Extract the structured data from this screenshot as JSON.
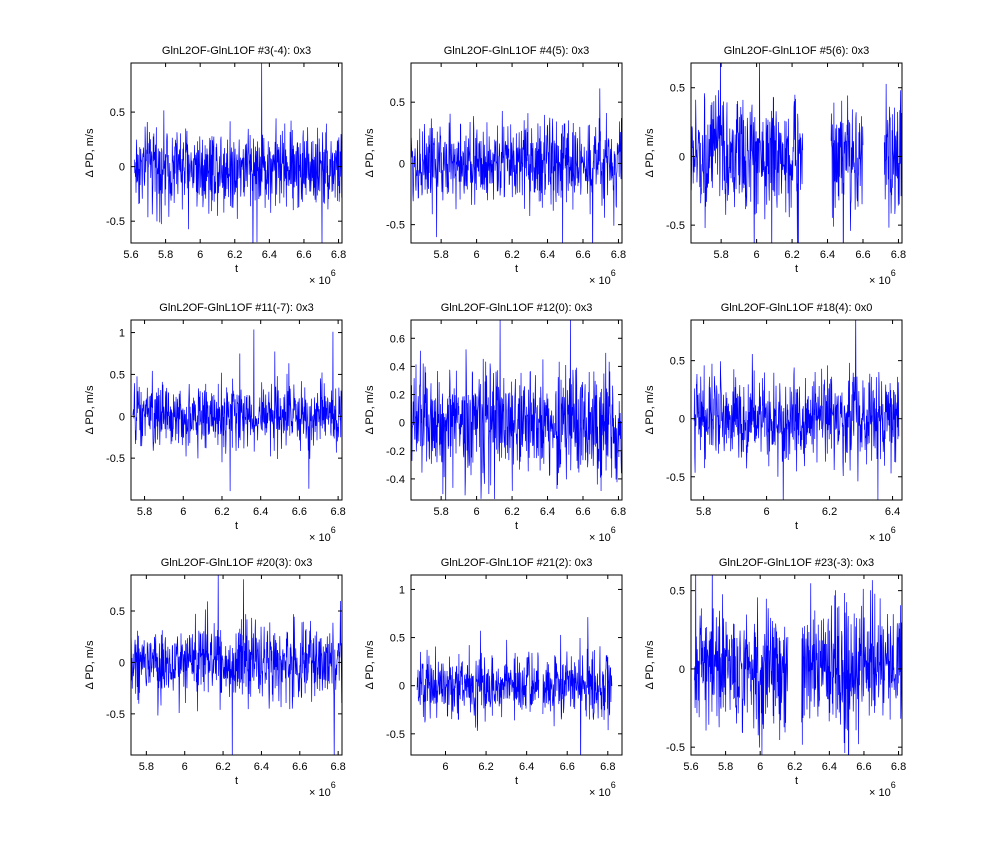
{
  "figure": {
    "background": "#ffffff",
    "series_color": "#0000ff"
  },
  "chart_data": [
    {
      "type": "line",
      "title": "GlnL2OF-GlnL1OF #3(-4): 0x3",
      "xlabel": "t",
      "ylabel": "Δ PD, m/s",
      "x_multiplier": "× 10^6",
      "xlim": [
        5.6,
        6.82
      ],
      "ylim": [
        -0.7,
        0.95
      ],
      "xticks": [
        5.6,
        5.8,
        6.0,
        6.2,
        6.4,
        6.6,
        6.8
      ],
      "xtick_labels": [
        "5.6",
        "5.8",
        "6",
        "6.2",
        "6.4",
        "6.6",
        "6.8"
      ],
      "yticks": [
        -0.5,
        0,
        0.5
      ],
      "ytick_labels": [
        "-0.5",
        "0",
        "0.5"
      ],
      "segments": [
        [
          5.62,
          6.82
        ]
      ],
      "noise_amplitude": 0.28,
      "series": [
        {
          "color": "#0000ff"
        }
      ]
    },
    {
      "type": "line",
      "title": "GlnL2OF-GlnL1OF #4(5): 0x3",
      "xlabel": "t",
      "ylabel": "Δ PD, m/s",
      "x_multiplier": "× 10^6",
      "xlim": [
        5.63,
        6.82
      ],
      "ylim": [
        -0.65,
        0.82
      ],
      "xticks": [
        5.8,
        6.0,
        6.2,
        6.4,
        6.6,
        6.8
      ],
      "xtick_labels": [
        "5.8",
        "6",
        "6.2",
        "6.4",
        "6.6",
        "6.8"
      ],
      "yticks": [
        -0.5,
        0,
        0.5
      ],
      "ytick_labels": [
        "-0.5",
        "0",
        "0.5"
      ],
      "segments": [
        [
          5.63,
          6.82
        ]
      ],
      "noise_amplitude": 0.25,
      "series": [
        {
          "color": "#0000ff"
        }
      ]
    },
    {
      "type": "line",
      "title": "GlnL2OF-GlnL1OF #5(6): 0x3",
      "xlabel": "t",
      "ylabel": "Δ PD, m/s",
      "x_multiplier": "× 10^6",
      "xlim": [
        5.63,
        6.82
      ],
      "ylim": [
        -0.63,
        0.68
      ],
      "xticks": [
        5.8,
        6.0,
        6.2,
        6.4,
        6.6,
        6.8
      ],
      "xtick_labels": [
        "5.8",
        "6",
        "6.2",
        "6.4",
        "6.6",
        "6.8"
      ],
      "yticks": [
        -0.5,
        0,
        0.5
      ],
      "ytick_labels": [
        "-0.5",
        "0",
        "0.5"
      ],
      "segments": [
        [
          5.63,
          6.26
        ],
        [
          6.42,
          6.6
        ],
        [
          6.72,
          6.82
        ]
      ],
      "noise_amplitude": 0.3,
      "series": [
        {
          "color": "#0000ff"
        }
      ]
    },
    {
      "type": "line",
      "title": "GlnL2OF-GlnL1OF #11(-7): 0x3",
      "xlabel": "t",
      "ylabel": "Δ PD, m/s",
      "x_multiplier": "× 10^6",
      "xlim": [
        5.73,
        6.82
      ],
      "ylim": [
        -1.0,
        1.15
      ],
      "xticks": [
        5.8,
        6.0,
        6.2,
        6.4,
        6.6,
        6.8
      ],
      "xtick_labels": [
        "5.8",
        "6",
        "6.2",
        "6.4",
        "6.6",
        "6.8"
      ],
      "yticks": [
        -0.5,
        0,
        0.5,
        1
      ],
      "ytick_labels": [
        "-0.5",
        "0",
        "0.5",
        "1"
      ],
      "segments": [
        [
          5.74,
          6.82
        ]
      ],
      "noise_amplitude": 0.28,
      "series": [
        {
          "color": "#0000ff"
        }
      ]
    },
    {
      "type": "line",
      "title": "GlnL2OF-GlnL1OF #12(0): 0x3",
      "xlabel": "t",
      "ylabel": "Δ PD, m/s",
      "x_multiplier": "× 10^6",
      "xlim": [
        5.63,
        6.82
      ],
      "ylim": [
        -0.55,
        0.73
      ],
      "xticks": [
        5.8,
        6.0,
        6.2,
        6.4,
        6.6,
        6.8
      ],
      "xtick_labels": [
        "5.8",
        "6",
        "6.2",
        "6.4",
        "6.6",
        "6.8"
      ],
      "yticks": [
        -0.4,
        -0.2,
        0,
        0.2,
        0.4,
        0.6
      ],
      "ytick_labels": [
        "-0.4",
        "-0.2",
        "0",
        "0.2",
        "0.4",
        "0.6"
      ],
      "segments": [
        [
          5.63,
          6.82
        ]
      ],
      "noise_amplitude": 0.3,
      "series": [
        {
          "color": "#0000ff"
        }
      ]
    },
    {
      "type": "line",
      "title": "GlnL2OF-GlnL1OF #18(4): 0x0",
      "xlabel": "t",
      "ylabel": "Δ PD, m/s",
      "x_multiplier": "× 10^6",
      "xlim": [
        5.76,
        6.43
      ],
      "ylim": [
        -0.7,
        0.85
      ],
      "xticks": [
        5.8,
        6.0,
        6.2,
        6.4
      ],
      "xtick_labels": [
        "5.8",
        "6",
        "6.2",
        "6.4"
      ],
      "yticks": [
        -0.5,
        0,
        0.5
      ],
      "ytick_labels": [
        "-0.5",
        "0",
        "0.5"
      ],
      "segments": [
        [
          5.77,
          6.42
        ]
      ],
      "noise_amplitude": 0.27,
      "series": [
        {
          "color": "#0000ff"
        }
      ]
    },
    {
      "type": "line",
      "title": "GlnL2OF-GlnL1OF #20(3): 0x3",
      "xlabel": "t",
      "ylabel": "Δ PD, m/s",
      "x_multiplier": "× 10^6",
      "xlim": [
        5.72,
        6.82
      ],
      "ylim": [
        -0.9,
        0.85
      ],
      "xticks": [
        5.8,
        6.0,
        6.2,
        6.4,
        6.6,
        6.8
      ],
      "xtick_labels": [
        "5.8",
        "6",
        "6.2",
        "6.4",
        "6.6",
        "6.8"
      ],
      "yticks": [
        -0.5,
        0,
        0.5
      ],
      "ytick_labels": [
        "-0.5",
        "0",
        "0.5"
      ],
      "segments": [
        [
          5.72,
          6.82
        ]
      ],
      "noise_amplitude": 0.27,
      "series": [
        {
          "color": "#0000ff"
        }
      ]
    },
    {
      "type": "line",
      "title": "GlnL2OF-GlnL1OF #21(2): 0x3",
      "xlabel": "t",
      "ylabel": "Δ PD, m/s",
      "x_multiplier": "× 10^6",
      "xlim": [
        5.83,
        6.87
      ],
      "ylim": [
        -0.72,
        1.15
      ],
      "xticks": [
        6.0,
        6.2,
        6.4,
        6.6,
        6.8
      ],
      "xtick_labels": [
        "6",
        "6.2",
        "6.4",
        "6.6",
        "6.8"
      ],
      "yticks": [
        -0.5,
        0,
        0.5,
        1
      ],
      "ytick_labels": [
        "-0.5",
        "0",
        "0.5",
        "1"
      ],
      "segments": [
        [
          5.86,
          6.46
        ],
        [
          6.48,
          6.82
        ]
      ],
      "noise_amplitude": 0.24,
      "series": [
        {
          "color": "#0000ff"
        }
      ]
    },
    {
      "type": "line",
      "title": "GlnL2OF-GlnL1OF #23(-3): 0x3",
      "xlabel": "t",
      "ylabel": "Δ PD, m/s",
      "x_multiplier": "× 10^6",
      "xlim": [
        5.6,
        6.82
      ],
      "ylim": [
        -0.55,
        0.6
      ],
      "xticks": [
        5.6,
        5.8,
        6.0,
        6.2,
        6.4,
        6.6,
        6.8
      ],
      "xtick_labels": [
        "5.6",
        "5.8",
        "6",
        "6.2",
        "6.4",
        "6.6",
        "6.8"
      ],
      "yticks": [
        -0.5,
        0,
        0.5
      ],
      "ytick_labels": [
        "-0.5",
        "0",
        "0.5"
      ],
      "segments": [
        [
          5.62,
          6.16
        ],
        [
          6.24,
          6.82
        ]
      ],
      "noise_amplitude": 0.3,
      "series": [
        {
          "color": "#0000ff"
        }
      ]
    }
  ]
}
